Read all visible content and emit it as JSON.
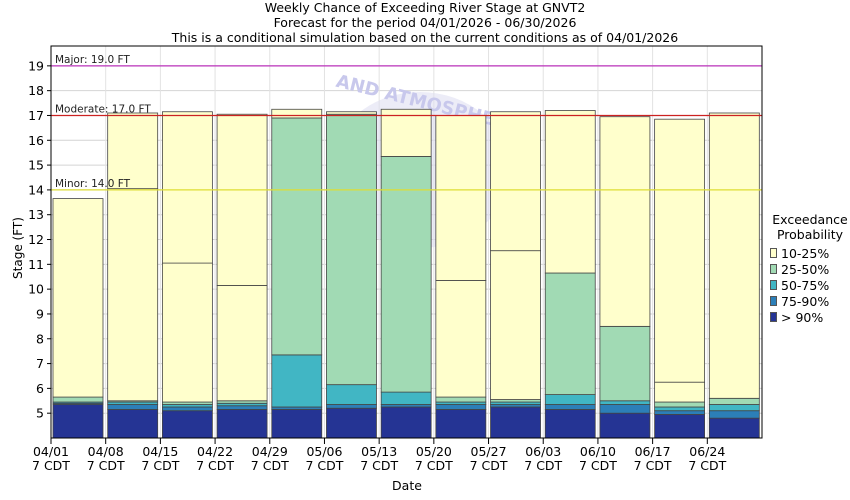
{
  "header": {
    "line1": "Weekly Chance of Exceeding River Stage at GNVT2",
    "line2": "Forecast for the period 04/01/2026 - 06/30/2026",
    "line3": "This is a conditional simulation based on the current conditions as of 04/01/2026"
  },
  "legend": {
    "title_line1": "Exceedance",
    "title_line2": "Probability",
    "items": [
      {
        "label": "10-25%",
        "color": "#ffffcc"
      },
      {
        "label": "25-50%",
        "color": "#a1dab4"
      },
      {
        "label": "50-75%",
        "color": "#41b6c4"
      },
      {
        "label": "75-90%",
        "color": "#2c7fb8"
      },
      {
        "label": "> 90%",
        "color": "#253494"
      }
    ]
  },
  "watermark_text": "AND ATMOSPHERIC",
  "chart_data": {
    "type": "bar",
    "subtype": "stacked-floating",
    "xlabel": "Date",
    "ylabel": "Stage (FT)",
    "ylim": [
      4.0,
      19.8
    ],
    "yticks": [
      5,
      6,
      7,
      8,
      9,
      10,
      11,
      12,
      13,
      14,
      15,
      16,
      17,
      18,
      19
    ],
    "grid": true,
    "thresholds": [
      {
        "label": "Major: 19.0 FT",
        "value": 19.0,
        "color": "#bb33bb"
      },
      {
        "label": "Moderate: 17.0 FT",
        "value": 17.0,
        "color": "#cc2222"
      },
      {
        "label": "Minor: 14.0 FT",
        "value": 14.0,
        "color": "#dddd33"
      }
    ],
    "weeks": [
      {
        "date": "04/01",
        "tz": "7 CDT",
        "stages": [
          5.35,
          5.4,
          5.45,
          5.65,
          13.65
        ]
      },
      {
        "date": "04/08",
        "tz": "7 CDT",
        "stages": [
          5.15,
          5.35,
          5.45,
          5.5,
          14.05,
          17.1
        ]
      },
      {
        "date": "04/15",
        "tz": "7 CDT",
        "stages": [
          5.1,
          5.25,
          5.35,
          5.45,
          11.05,
          17.15
        ]
      },
      {
        "date": "04/22",
        "tz": "7 CDT",
        "stages": [
          5.15,
          5.3,
          5.4,
          5.5,
          10.15,
          17.05
        ]
      },
      {
        "date": "04/29",
        "tz": "7 CDT",
        "stages": [
          5.15,
          5.25,
          7.35,
          16.9,
          17.25
        ]
      },
      {
        "date": "05/06",
        "tz": "7 CDT",
        "stages": [
          5.2,
          5.35,
          6.15,
          17.05,
          17.15
        ]
      },
      {
        "date": "05/13",
        "tz": "7 CDT",
        "stages": [
          5.25,
          5.35,
          5.85,
          15.35,
          17.25
        ]
      },
      {
        "date": "05/20",
        "tz": "7 CDT",
        "stages": [
          5.15,
          5.35,
          5.45,
          5.65,
          10.35,
          17.0
        ]
      },
      {
        "date": "05/27",
        "tz": "7 CDT",
        "stages": [
          5.25,
          5.35,
          5.45,
          5.55,
          11.55,
          17.15
        ]
      },
      {
        "date": "06/03",
        "tz": "7 CDT",
        "stages": [
          5.15,
          5.35,
          5.75,
          10.65,
          17.2
        ]
      },
      {
        "date": "06/10",
        "tz": "7 CDT",
        "stages": [
          5.0,
          5.35,
          5.5,
          8.5,
          16.95
        ]
      },
      {
        "date": "06/17",
        "tz": "7 CDT",
        "stages": [
          4.95,
          5.1,
          5.25,
          5.45,
          6.25,
          16.85
        ]
      },
      {
        "date": "06/24",
        "tz": "7 CDT",
        "stages": [
          4.8,
          5.1,
          5.35,
          5.6,
          17.1
        ]
      }
    ]
  }
}
